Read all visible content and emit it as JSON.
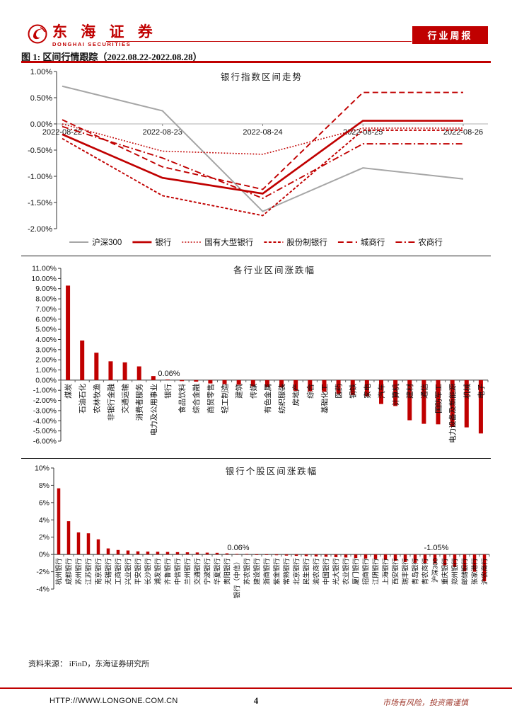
{
  "header": {
    "brand_cn": "东 海 证 券",
    "brand_en": "DONGHAI SECURITIES",
    "badge": "行业周报"
  },
  "figure_caption": "图 1: 区间行情跟踪（2022.08.22-2022.08.28）",
  "colors": {
    "accent": "#c00000",
    "gray_series": "#a6a6a6",
    "zero_gridline": "#bfbfbf"
  },
  "chart_data": [
    {
      "type": "line",
      "title": "银行指数区间走势",
      "x": [
        "2022-08-22",
        "2022-08-23",
        "2022-08-24",
        "2022-08-25",
        "2022-08-26"
      ],
      "ylim": [
        -2.0,
        1.0
      ],
      "ytick_step": 0.5,
      "ytick_decimals": 2,
      "grid": "zero-line-only",
      "legend_position": "bottom",
      "series": [
        {
          "name": "沪深300",
          "color": "#a6a6a6",
          "style": "solid",
          "values": [
            0.72,
            0.25,
            -1.67,
            -0.84,
            -1.05
          ]
        },
        {
          "name": "银行",
          "color": "#c00000",
          "style": "solid-thick",
          "values": [
            -0.2,
            -1.03,
            -1.33,
            0.06,
            0.06
          ]
        },
        {
          "name": "国有大型银行",
          "color": "#c00000",
          "style": "dotted",
          "values": [
            0.0,
            -0.52,
            -0.58,
            -0.08,
            -0.08
          ]
        },
        {
          "name": "股份制银行",
          "color": "#c00000",
          "style": "dash-dense",
          "values": [
            -0.28,
            -1.37,
            -1.75,
            -0.12,
            -0.12
          ]
        },
        {
          "name": "城商行",
          "color": "#c00000",
          "style": "dash",
          "values": [
            0.08,
            -0.82,
            -1.25,
            0.6,
            0.6
          ]
        },
        {
          "name": "农商行",
          "color": "#c00000",
          "style": "dash-dot",
          "values": [
            -0.05,
            -0.65,
            -1.42,
            -0.38,
            -0.38
          ]
        }
      ]
    },
    {
      "type": "bar",
      "title": "各行业区间涨跌幅",
      "ylim": [
        -6,
        11
      ],
      "ytick_step": 1,
      "ytick_decimals": 2,
      "bar_color": "#c00000",
      "categories": [
        "煤炭",
        "石油石化",
        "农林牧渔",
        "非银行金融",
        "交通运输",
        "消费者服务",
        "电力及公用事业",
        "银行",
        "食品饮料",
        "综合金融",
        "商贸零售",
        "轻工制造",
        "建筑",
        "传媒",
        "有色金属",
        "纺织服装",
        "房地产",
        "综合",
        "基础化工",
        "医药",
        "钢铁",
        "家电",
        "汽车",
        "计算机",
        "建材",
        "通信",
        "国防军工",
        "电力设备及新能源",
        "机械",
        "电子"
      ],
      "values": [
        9.3,
        3.9,
        2.7,
        1.85,
        1.75,
        1.35,
        0.4,
        0.06,
        -0.1,
        -0.15,
        -0.33,
        -0.4,
        -0.45,
        -0.6,
        -0.68,
        -0.72,
        -1.05,
        -1.1,
        -1.15,
        -1.35,
        -1.45,
        -1.6,
        -2.35,
        -2.55,
        -3.95,
        -4.3,
        -4.35,
        -4.6,
        -4.65,
        -5.25
      ],
      "data_labels": [
        {
          "index": 7,
          "text": "0.06%"
        }
      ]
    },
    {
      "type": "bar",
      "title": "银行个股区间涨跌幅",
      "ylim": [
        -4,
        10
      ],
      "ytick_step": 2,
      "ytick_decimals": 0,
      "bar_color": "#c00000",
      "categories": [
        "杭州银行",
        "成都银行",
        "苏州银行",
        "江苏银行",
        "南京银行",
        "无锡银行",
        "工商银行",
        "兴业银行",
        "平安银行",
        "长沙银行",
        "浦发银行",
        "齐鲁银行",
        "中信银行",
        "兰州银行",
        "交通银行",
        "宁波银行",
        "华夏银行",
        "贵阳银行",
        "银行（中信）",
        "苏农银行",
        "建设银行",
        "浙商银行",
        "紫金银行",
        "常熟银行",
        "北京银行",
        "民生银行",
        "渝农商行",
        "中国银行",
        "光大银行",
        "农业银行",
        "厦门银行",
        "招商银行",
        "江阴银行",
        "上海银行",
        "西安银行",
        "瑞丰银行",
        "青岛银行",
        "青农商行",
        "沪深300",
        "重庆银行",
        "郑州银行",
        "邮储银行",
        "张家港行",
        "沪农商行"
      ],
      "values": [
        7.65,
        3.85,
        2.55,
        2.45,
        1.75,
        0.7,
        0.52,
        0.46,
        0.36,
        0.33,
        0.31,
        0.29,
        0.27,
        0.25,
        0.23,
        0.21,
        0.19,
        0.13,
        0.06,
        0.03,
        -0.02,
        -0.05,
        -0.09,
        -0.13,
        -0.16,
        -0.19,
        -0.23,
        -0.27,
        -0.31,
        -0.35,
        -0.41,
        -0.47,
        -0.54,
        -0.62,
        -0.72,
        -0.88,
        -0.96,
        -1.0,
        -1.05,
        -1.25,
        -1.45,
        -1.95,
        -2.0,
        -3.1
      ],
      "data_labels": [
        {
          "index": 18,
          "text": "0.06%"
        },
        {
          "index": 38,
          "text": "-1.05%"
        }
      ]
    }
  ],
  "source_note": "资料来源： iFinD，东海证券研究所",
  "footer": {
    "url": "HTTP://WWW.LONGONE.COM.CN",
    "page": "4",
    "disclaimer": "市场有风险，投资需谨慎"
  }
}
